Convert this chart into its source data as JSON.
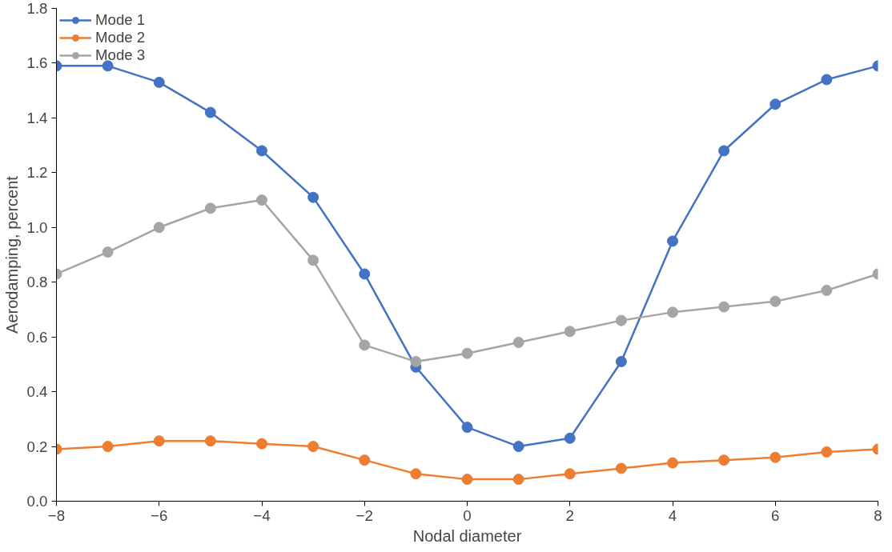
{
  "chart_data": {
    "type": "line",
    "xlabel": "Nodal diameter",
    "ylabel": "Aerodamping, percent",
    "x": [
      -8,
      -7,
      -6,
      -5,
      -4,
      -3,
      -2,
      -1,
      0,
      1,
      2,
      3,
      4,
      5,
      6,
      7,
      8
    ],
    "series": [
      {
        "name": "Mode 1",
        "color": "#4472c4",
        "values": [
          1.59,
          1.59,
          1.53,
          1.42,
          1.28,
          1.11,
          0.83,
          0.49,
          0.27,
          0.2,
          0.23,
          0.51,
          0.95,
          1.28,
          1.45,
          1.54,
          1.59
        ]
      },
      {
        "name": "Mode 2",
        "color": "#ed7d31",
        "values": [
          0.19,
          0.2,
          0.22,
          0.22,
          0.21,
          0.2,
          0.15,
          0.1,
          0.08,
          0.08,
          0.1,
          0.12,
          0.14,
          0.15,
          0.16,
          0.18,
          0.19
        ]
      },
      {
        "name": "Mode 3",
        "color": "#a5a5a5",
        "values": [
          0.83,
          0.91,
          1.0,
          1.07,
          1.1,
          0.88,
          0.57,
          0.51,
          0.54,
          0.58,
          0.62,
          0.66,
          0.69,
          0.71,
          0.73,
          0.77,
          0.83
        ]
      }
    ],
    "xlim": [
      -8,
      8
    ],
    "xticks": [
      {
        "value": -8,
        "label": "−8"
      },
      {
        "value": -6,
        "label": "−6"
      },
      {
        "value": -4,
        "label": "−4"
      },
      {
        "value": -2,
        "label": "−2"
      },
      0,
      2,
      4,
      6,
      8
    ],
    "ylim": [
      0,
      1.8
    ],
    "yticks": [
      {
        "value": 0,
        "label": "0.0"
      },
      {
        "value": 0.2,
        "label": "0.2"
      },
      {
        "value": 0.4,
        "label": "0.4"
      },
      {
        "value": 0.6,
        "label": "0.6"
      },
      {
        "value": 0.8,
        "label": "0.8"
      },
      {
        "value": 1,
        "label": "1.0"
      },
      {
        "value": 1.2,
        "label": "1.2"
      },
      {
        "value": 1.4,
        "label": "1.4"
      },
      {
        "value": 1.6,
        "label": "1.6"
      },
      {
        "value": 1.8,
        "label": "1.8"
      }
    ],
    "grid": false,
    "legend": "top left",
    "marker": "circle",
    "line_style": "solid"
  }
}
